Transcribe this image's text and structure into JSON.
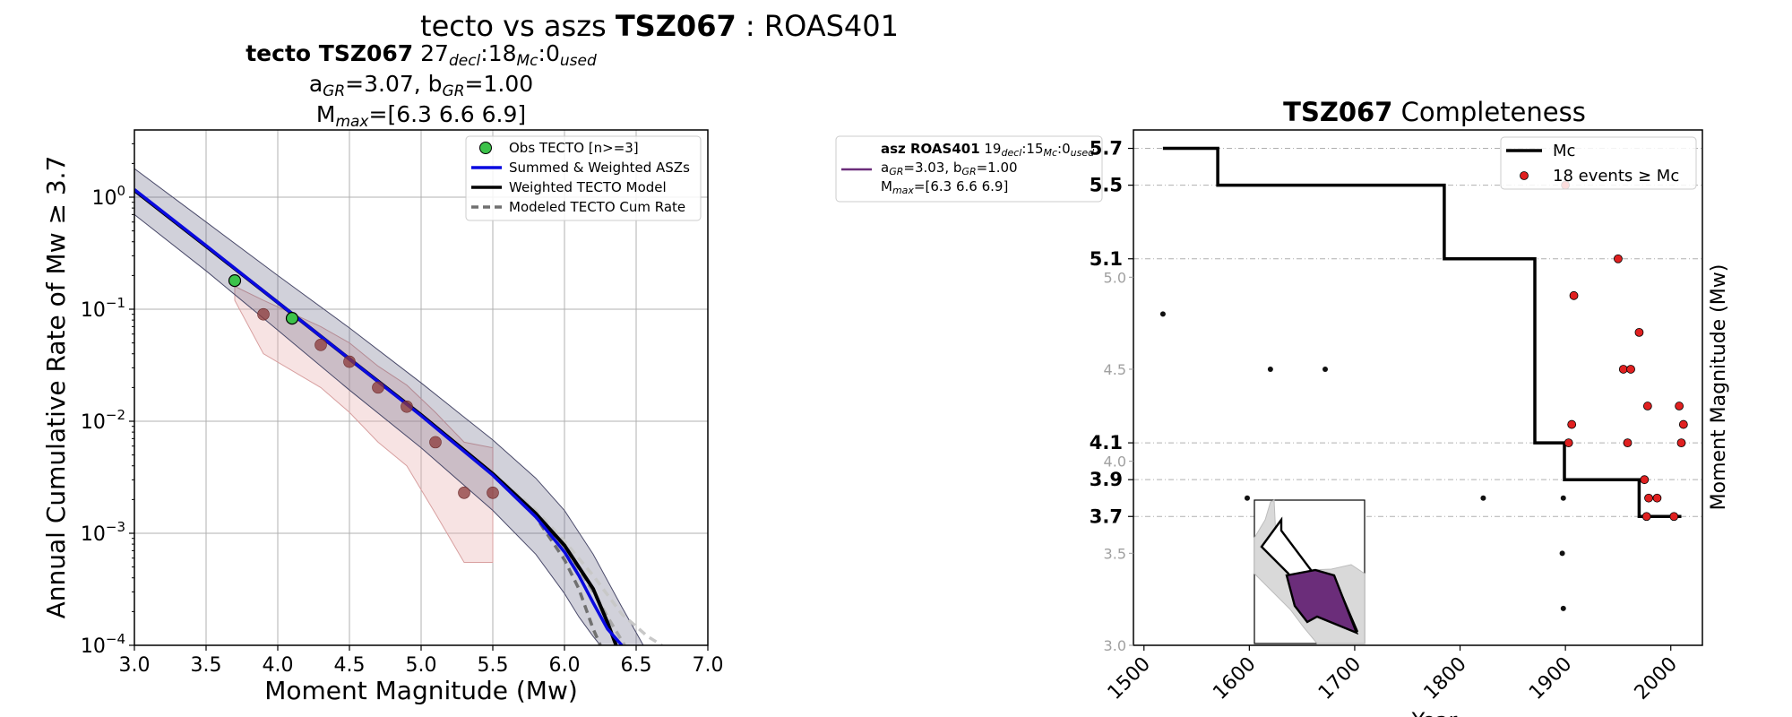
{
  "suptitle": {
    "pre": "tecto vs aszs ",
    "bold": "TSZ067",
    "post": " : ROAS401"
  },
  "charts": [
    {
      "type": "line",
      "title_line1": {
        "bold": "tecto TSZ067",
        "rest": "  27",
        "sub1": "decl",
        "mid1": ":18",
        "sub2": "Mc",
        "mid2": ":0",
        "sub3": "used"
      },
      "title_line2": {
        "a_pre": "a",
        "a_sub": "GR",
        "a_val": "=3.07,  ",
        "b_pre": "b",
        "b_sub": "GR",
        "b_val": "=1.00"
      },
      "title_line3": {
        "pre": "M",
        "sub": "max",
        "post": "=[6.3 6.6 6.9]"
      },
      "xlabel": "Moment Magnitude (Mw)",
      "ylabel": "Annual Cumulative Rate of Mw  ≥  3.7",
      "xlim": [
        3.0,
        7.0
      ],
      "ylim_log10": [
        -4,
        0.6
      ],
      "x_ticks": [
        "3.0",
        "3.5",
        "4.0",
        "4.5",
        "5.0",
        "5.5",
        "6.0",
        "6.5",
        "7.0"
      ],
      "y_ticks": [
        {
          "base": "10",
          "exp": "0",
          "v": 0
        },
        {
          "base": "10",
          "exp": "−1",
          "v": -1
        },
        {
          "base": "10",
          "exp": "−2",
          "v": -2
        },
        {
          "base": "10",
          "exp": "−3",
          "v": -3
        },
        {
          "base": "10",
          "exp": "−4",
          "v": -4
        }
      ],
      "grid": true,
      "legend": {
        "placement": "top-right",
        "entries": [
          "Obs TECTO [n>=3]",
          "Summed & Weighted ASZs",
          "Weighted TECTO Model",
          "Modeled TECTO Cum Rate"
        ]
      },
      "colors": {
        "obs": "#3cc24a",
        "summed": "#0a0ae0",
        "weighted": "#000000",
        "modeled": "#707070",
        "band": "#5a5a7a",
        "asz_points": "#8b3a3a",
        "asz_band": "#e8b0b0"
      },
      "series": {
        "obs_tecto": {
          "x": [
            3.7,
            4.1
          ],
          "y": [
            0.18,
            0.083
          ]
        },
        "asz_obs": {
          "x": [
            3.9,
            4.3,
            4.5,
            4.7,
            4.9,
            5.1,
            5.3,
            5.5
          ],
          "y": [
            0.09,
            0.048,
            0.034,
            0.02,
            0.0135,
            0.0065,
            0.0023,
            0.0023
          ]
        },
        "summed_asz": {
          "x": [
            3.0,
            3.5,
            4.0,
            4.5,
            5.0,
            5.5,
            5.8,
            6.0,
            6.1,
            6.2,
            6.3,
            6.4
          ],
          "y": [
            1.17,
            0.37,
            0.115,
            0.036,
            0.0112,
            0.0033,
            0.0014,
            0.00068,
            0.00042,
            0.00024,
            0.00014,
            0.0001
          ]
        },
        "weighted_tecto": {
          "x": [
            3.0,
            3.5,
            4.0,
            4.5,
            5.0,
            5.5,
            5.8,
            6.0,
            6.2,
            6.3,
            6.36
          ],
          "y": [
            1.15,
            0.365,
            0.115,
            0.036,
            0.0114,
            0.0034,
            0.0015,
            0.00078,
            0.00032,
            0.00016,
            0.0001
          ]
        },
        "modeled_low": {
          "x": [
            5.5,
            5.8,
            6.0,
            6.1,
            6.2,
            6.25
          ],
          "y": [
            0.0033,
            0.0014,
            0.00058,
            0.00032,
            0.00014,
            0.0001
          ]
        },
        "modeled_mid": {
          "x": [
            5.5,
            5.8,
            6.0,
            6.2,
            6.3,
            6.42
          ],
          "y": [
            0.0034,
            0.0015,
            0.00075,
            0.0003,
            0.00018,
            0.0001
          ]
        },
        "modeled_high": {
          "x": [
            5.5,
            5.8,
            6.0,
            6.2,
            6.4,
            6.58,
            6.68
          ],
          "y": [
            0.0035,
            0.0016,
            0.00085,
            0.00042,
            0.00019,
            0.00012,
            0.0001
          ]
        },
        "band_upper": {
          "x": [
            3.0,
            3.5,
            4.0,
            4.5,
            5.0,
            5.5,
            5.8,
            6.0,
            6.2,
            6.4,
            6.55
          ],
          "y": [
            1.8,
            0.6,
            0.2,
            0.068,
            0.022,
            0.0068,
            0.0031,
            0.0016,
            0.00065,
            0.00022,
            0.0001
          ]
        },
        "band_lower": {
          "x": [
            3.0,
            3.5,
            4.0,
            4.5,
            5.0,
            5.5,
            5.8,
            6.0,
            6.1,
            6.2,
            6.25
          ],
          "y": [
            0.7,
            0.22,
            0.065,
            0.019,
            0.0058,
            0.0016,
            0.00065,
            0.00029,
            0.00018,
            0.00012,
            0.0001
          ]
        },
        "asz_band_upper": {
          "x": [
            3.7,
            3.9,
            4.3,
            4.5,
            4.7,
            4.9,
            5.1,
            5.3,
            5.5
          ],
          "y": [
            0.16,
            0.12,
            0.07,
            0.05,
            0.031,
            0.021,
            0.012,
            0.0065,
            0.0058
          ]
        },
        "asz_band_lower": {
          "x": [
            3.7,
            3.9,
            4.3,
            4.5,
            4.7,
            4.9,
            5.1,
            5.3,
            5.5
          ],
          "y": [
            0.12,
            0.04,
            0.02,
            0.012,
            0.0065,
            0.004,
            0.0015,
            0.00055,
            0.00055
          ]
        }
      }
    },
    {
      "type": "scatter",
      "title": {
        "bold": "TSZ067",
        "rest": " Completeness"
      },
      "xlabel": "Year",
      "ylabel": "Moment Magnitude (Mw)",
      "xlim": [
        1490,
        2030
      ],
      "ylim": [
        3.0,
        5.8
      ],
      "x_ticks": [
        "1500",
        "1600",
        "1700",
        "1800",
        "1900",
        "2000"
      ],
      "y_ticks_right": [
        "3.0",
        "3.5",
        "4.0",
        "4.5",
        "5.0"
      ],
      "mc_ticks": [
        "3.7",
        "3.9",
        "4.1",
        "5.1",
        "5.5",
        "5.7"
      ],
      "legend": {
        "placement": "top-right",
        "entries": [
          "Mc",
          "18 events ≥  Mc"
        ]
      },
      "mc_step": {
        "x": [
          1518,
          1570,
          1570,
          1785,
          1785,
          1871,
          1871,
          1899,
          1899,
          1970,
          1970,
          2010
        ],
        "y": [
          5.7,
          5.7,
          5.5,
          5.5,
          5.1,
          5.1,
          4.1,
          4.1,
          3.9,
          3.9,
          3.7,
          3.7
        ]
      },
      "events_above_mc": {
        "x": [
          1900,
          1950,
          1908,
          1970,
          1955,
          1962,
          1978,
          1906,
          2008,
          2012,
          1959,
          1903,
          2010,
          1975,
          1979,
          1987,
          1977,
          2003
        ],
        "y": [
          5.5,
          5.1,
          4.9,
          4.7,
          4.5,
          4.5,
          4.3,
          4.2,
          4.3,
          4.2,
          4.1,
          4.1,
          4.1,
          3.9,
          3.8,
          3.8,
          3.7,
          3.7
        ]
      },
      "events_below_mc": {
        "x": [
          1518,
          1620,
          1672,
          1598,
          1822,
          1898,
          1897,
          1898
        ],
        "y": [
          4.8,
          4.5,
          4.5,
          3.8,
          3.8,
          3.8,
          3.5,
          3.2
        ]
      },
      "colors": {
        "event": "#e02020",
        "below": "#111111",
        "mc": "#000000"
      }
    }
  ],
  "legend_box": {
    "swatch_color": "#6b2d7a",
    "line1": {
      "bold": "asz ROAS401",
      "rest": " 19",
      "sub1": "decl",
      "mid1": ":15",
      "sub2": "Mc",
      "mid2": ":0",
      "sub3": "used"
    },
    "line2": {
      "a_pre": "a",
      "a_sub": "GR",
      "a_val": "=3.03,  ",
      "b_pre": "b",
      "b_sub": "GR",
      "b_val": "=1.00"
    },
    "line3": {
      "pre": "M",
      "sub": "max",
      "post": "=[6.3 6.6 6.9]"
    }
  },
  "inset": {
    "fill": "#6b2d7a",
    "land": "#d9d9d9"
  }
}
